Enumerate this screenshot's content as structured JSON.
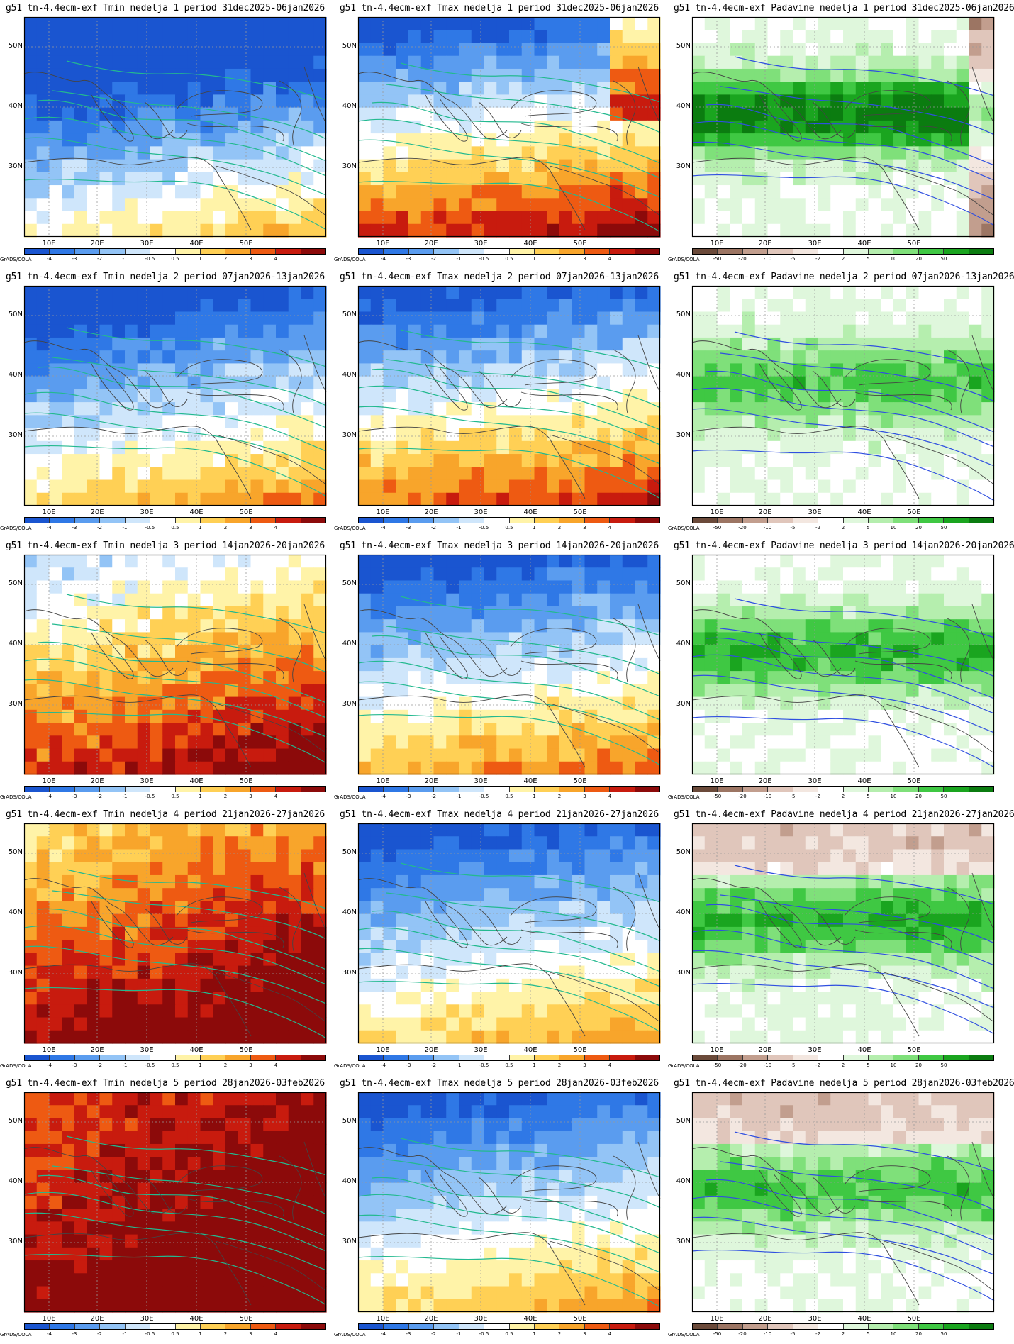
{
  "credit": "GrADS/COLA",
  "yticks": [
    "50N",
    "40N",
    "30N"
  ],
  "xticks": [
    "10E",
    "20E",
    "30E",
    "40E",
    "50E"
  ],
  "temp_scale": {
    "labels": [
      "-4",
      "-3",
      "-2",
      "-1",
      "-0.5",
      "0.5",
      "1",
      "2",
      "3",
      "4"
    ],
    "colors": [
      "#1a55d0",
      "#2f78e6",
      "#5a9cef",
      "#93c4f6",
      "#cfe6fb",
      "#ffffff",
      "#fff3a8",
      "#ffd055",
      "#f8a52b",
      "#ee5a12",
      "#c81b0e",
      "#8c0a0a"
    ]
  },
  "precip_scale": {
    "labels": [
      "-50",
      "-20",
      "-10",
      "-5",
      "-2",
      "2",
      "5",
      "10",
      "20",
      "50"
    ],
    "colors": [
      "#6b4a3a",
      "#9c7563",
      "#c29e8e",
      "#e0c6bb",
      "#f3e7e0",
      "#ffffff",
      "#dff7dc",
      "#b5eeae",
      "#7fe07a",
      "#3fc843",
      "#1aa51f",
      "#0b7c10"
    ]
  },
  "panels": [
    {
      "title": "g51 tn-4.4ecm-exf Tmin nedelja 1 period 31dec2025-06jan2026"
    },
    {
      "title": "g51 tn-4.4ecm-exf Tmax nedelja 1 period 31dec2025-06jan2026"
    },
    {
      "title": "g51 tn-4.4ecm-exf Padavine nedelja 1 period 31dec2025-06jan2026"
    },
    {
      "title": "g51 tn-4.4ecm-exf Tmin nedelja 2 period 07jan2026-13jan2026"
    },
    {
      "title": "g51 tn-4.4ecm-exf Tmax nedelja 2 period 07jan2026-13jan2026"
    },
    {
      "title": "g51 tn-4.4ecm-exf Padavine nedelja 2 period 07jan2026-13jan2026"
    },
    {
      "title": "g51 tn-4.4ecm-exf Tmin nedelja 3 period 14jan2026-20jan2026"
    },
    {
      "title": "g51 tn-4.4ecm-exf Tmax nedelja 3 period 14jan2026-20jan2026"
    },
    {
      "title": "g51 tn-4.4ecm-exf Padavine nedelja 3 period 14jan2026-20jan2026"
    },
    {
      "title": "g51 tn-4.4ecm-exf Tmin nedelja 4 period 21jan2026-27jan2026"
    },
    {
      "title": "g51 tn-4.4ecm-exf Tmax nedelja 4 period 21jan2026-27jan2026"
    },
    {
      "title": "g51 tn-4.4ecm-exf Padavine nedelja 4 period 21jan2026-27jan2026"
    },
    {
      "title": "g51 tn-4.4ecm-exf Tmin nedelja 5 period 28jan2026-03feb2026"
    },
    {
      "title": "g51 tn-4.4ecm-exf Tmax nedelja 5 period 28jan2026-03feb2026"
    },
    {
      "title": "g51 tn-4.4ecm-exf Padavine nedelja 5 period 28jan2026-03feb2026"
    }
  ]
}
